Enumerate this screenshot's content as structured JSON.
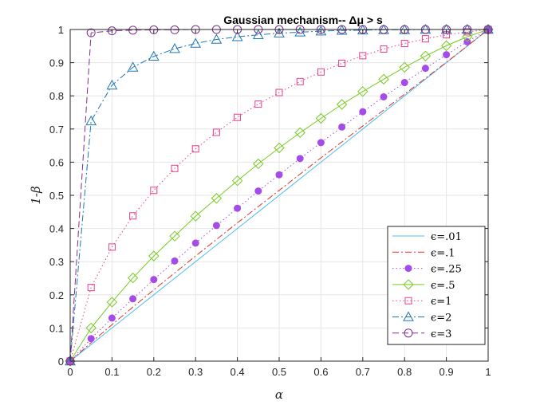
{
  "chart_data": {
    "type": "line",
    "title": "Gaussian mechanism-- Δμ > s",
    "xlabel": "α",
    "ylabel": "1-β",
    "xlim": [
      0,
      1
    ],
    "ylim": [
      0,
      1
    ],
    "x_ticks": [
      "0",
      "0.1",
      "0.2",
      "0.3",
      "0.4",
      "0.5",
      "0.6",
      "0.7",
      "0.8",
      "0.9",
      "1"
    ],
    "y_ticks": [
      "0",
      "0.1",
      "0.2",
      "0.3",
      "0.4",
      "0.5",
      "0.6",
      "0.7",
      "0.8",
      "0.9",
      "1"
    ],
    "grid": true,
    "legend_position": "bottom-right",
    "x": [
      0,
      0.05,
      0.1,
      0.15,
      0.2,
      0.25,
      0.3,
      0.35,
      0.4,
      0.45,
      0.5,
      0.55,
      0.6,
      0.65,
      0.7,
      0.75,
      0.8,
      0.85,
      0.9,
      0.95,
      1
    ],
    "series": [
      {
        "name": "ϵ=.01",
        "color": "#4DBEEE",
        "line": "solid",
        "marker": "none",
        "values": [
          0,
          0.05,
          0.1,
          0.15,
          0.2,
          0.25,
          0.3,
          0.35,
          0.4,
          0.45,
          0.5,
          0.55,
          0.6,
          0.65,
          0.7,
          0.75,
          0.8,
          0.85,
          0.9,
          0.95,
          1
        ]
      },
      {
        "name": "ϵ=.1",
        "color": "#E0302A",
        "line": "dashdot",
        "marker": "none",
        "values": [
          0,
          0.056,
          0.11,
          0.163,
          0.215,
          0.266,
          0.317,
          0.367,
          0.417,
          0.466,
          0.515,
          0.564,
          0.613,
          0.661,
          0.709,
          0.757,
          0.805,
          0.853,
          0.901,
          0.95,
          1
        ]
      },
      {
        "name": "ϵ=.25",
        "color": "#A54CE8",
        "line": "dotted",
        "marker": "dot",
        "values": [
          0,
          0.068,
          0.13,
          0.188,
          0.246,
          0.302,
          0.356,
          0.409,
          0.461,
          0.513,
          0.562,
          0.611,
          0.659,
          0.706,
          0.752,
          0.797,
          0.84,
          0.883,
          0.924,
          0.963,
          1
        ]
      },
      {
        "name": "ϵ=.5",
        "color": "#77CC22",
        "line": "solid",
        "marker": "diamond",
        "values": [
          0,
          0.1,
          0.178,
          0.251,
          0.317,
          0.377,
          0.437,
          0.491,
          0.544,
          0.595,
          0.643,
          0.689,
          0.732,
          0.774,
          0.813,
          0.85,
          0.886,
          0.92,
          0.951,
          0.978,
          1
        ]
      },
      {
        "name": "ϵ=1",
        "color": "#E83E8C",
        "line": "dotted",
        "marker": "square",
        "values": [
          0,
          0.222,
          0.344,
          0.438,
          0.515,
          0.581,
          0.64,
          0.69,
          0.735,
          0.775,
          0.81,
          0.843,
          0.872,
          0.898,
          0.921,
          0.941,
          0.958,
          0.972,
          0.984,
          0.993,
          1
        ]
      },
      {
        "name": "ϵ=2",
        "color": "#1F77B4",
        "line": "dashdot",
        "marker": "triangle",
        "values": [
          0,
          0.724,
          0.832,
          0.886,
          0.919,
          0.942,
          0.958,
          0.97,
          0.978,
          0.984,
          0.989,
          0.992,
          0.995,
          0.997,
          0.998,
          0.999,
          0.999,
          1.0,
          1.0,
          1.0,
          1
        ]
      },
      {
        "name": "ϵ=3",
        "color": "#7E2F8E",
        "line": "dashed",
        "marker": "circle",
        "values": [
          0,
          0.99,
          0.996,
          0.998,
          0.999,
          0.999,
          1.0,
          1.0,
          1.0,
          1.0,
          1.0,
          1.0,
          1.0,
          1.0,
          1.0,
          1.0,
          1.0,
          1.0,
          1.0,
          1.0,
          1
        ]
      }
    ]
  }
}
